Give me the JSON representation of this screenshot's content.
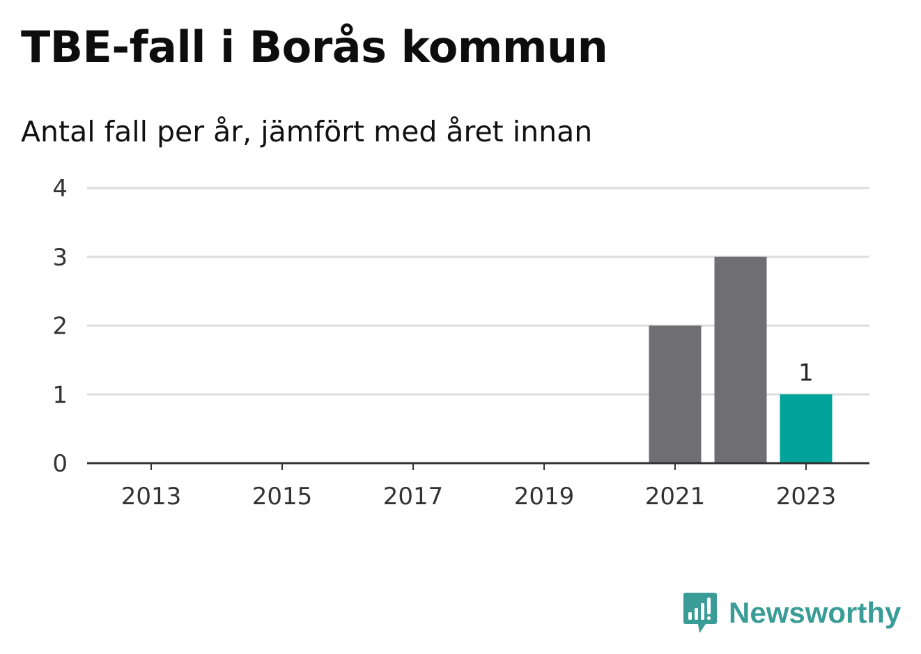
{
  "header": {
    "title": "TBE-fall i Borås kommun",
    "subtitle": "Antal fall per år, jämfört med året innan"
  },
  "brand": {
    "name": "Newsworthy",
    "icon": "bar-chart-speech-bubble-icon",
    "color": "#3a9c96"
  },
  "chart_data": {
    "type": "bar",
    "categories": [
      "2013",
      "2014",
      "2015",
      "2016",
      "2017",
      "2018",
      "2019",
      "2020",
      "2021",
      "2022",
      "2023"
    ],
    "values": [
      0,
      0,
      0,
      0,
      0,
      0,
      0,
      0,
      2,
      3,
      1
    ],
    "highlight_index": 10,
    "data_labels": [
      {
        "index": 10,
        "text": "1"
      }
    ],
    "x_tick_labels": [
      "2013",
      "2015",
      "2017",
      "2019",
      "2021",
      "2023"
    ],
    "y_ticks": [
      0,
      1,
      2,
      3,
      4
    ],
    "ylim": [
      0,
      4
    ],
    "title": "TBE-fall i Borås kommun",
    "subtitle": "Antal fall per år, jämfört med året innan",
    "xlabel": "",
    "ylabel": "",
    "grid": true,
    "colors": {
      "bar": "#6f6e73",
      "highlight": "#00a39a",
      "grid": "#dddddd",
      "axis": "#333333"
    }
  }
}
